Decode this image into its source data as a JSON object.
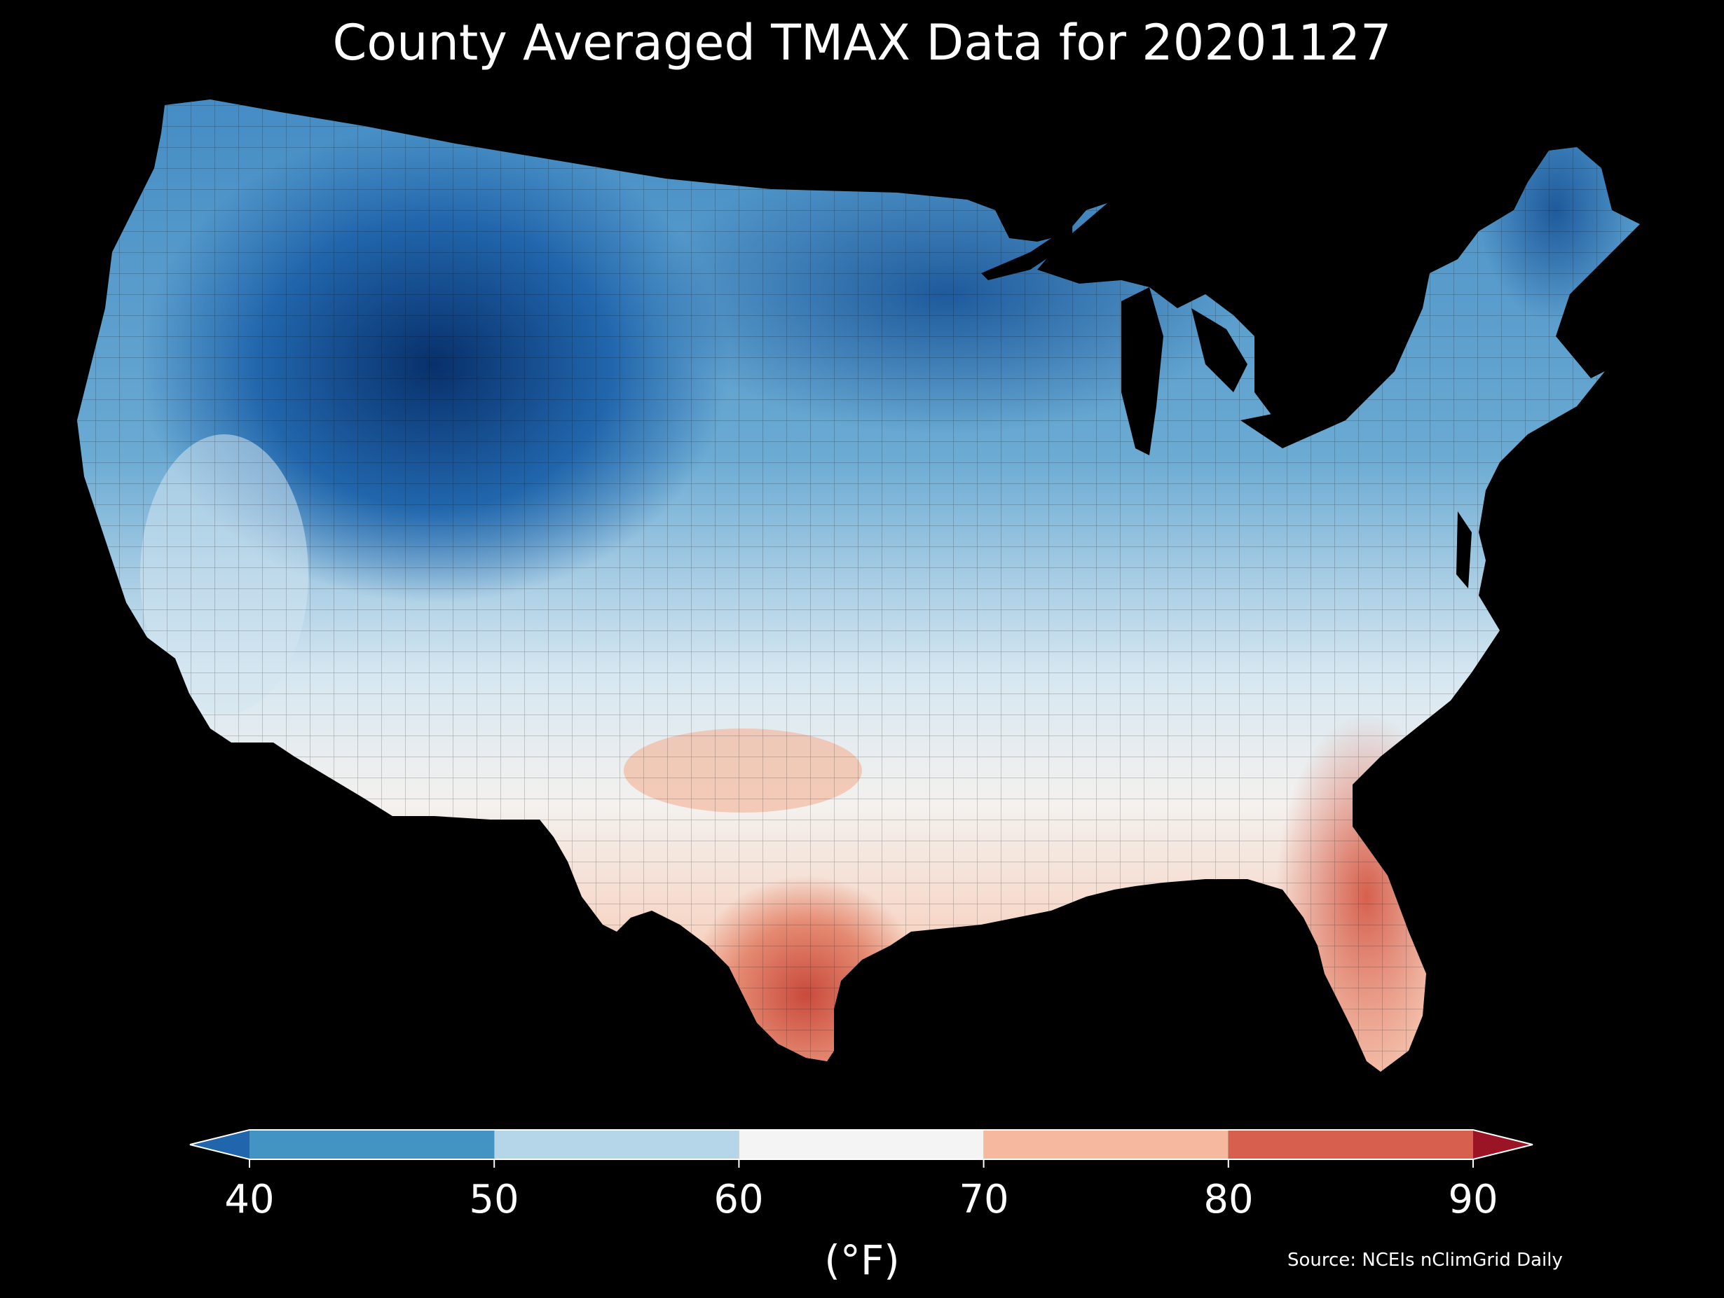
{
  "title": "County Averaged TMAX Data for 20201127",
  "colorbar": {
    "ticks": [
      "40",
      "50",
      "60",
      "70",
      "80",
      "90"
    ],
    "unit": "(°F)",
    "bins": [
      {
        "from": null,
        "to": 40,
        "color": "#2166ac"
      },
      {
        "from": 40,
        "to": 50,
        "color": "#4393c3"
      },
      {
        "from": 50,
        "to": 60,
        "color": "#b4d6e8"
      },
      {
        "from": 60,
        "to": 70,
        "color": "#f4f4f4"
      },
      {
        "from": 70,
        "to": 80,
        "color": "#f6b89e"
      },
      {
        "from": 80,
        "to": 90,
        "color": "#d6604d"
      },
      {
        "from": 90,
        "to": null,
        "color": "#9b1426"
      }
    ]
  },
  "source": "Source: NCEIs nClimGrid Daily",
  "map": {
    "region": "Contiguous United States, county level",
    "variable": "TMAX",
    "units": "°F",
    "background": "#000000"
  }
}
